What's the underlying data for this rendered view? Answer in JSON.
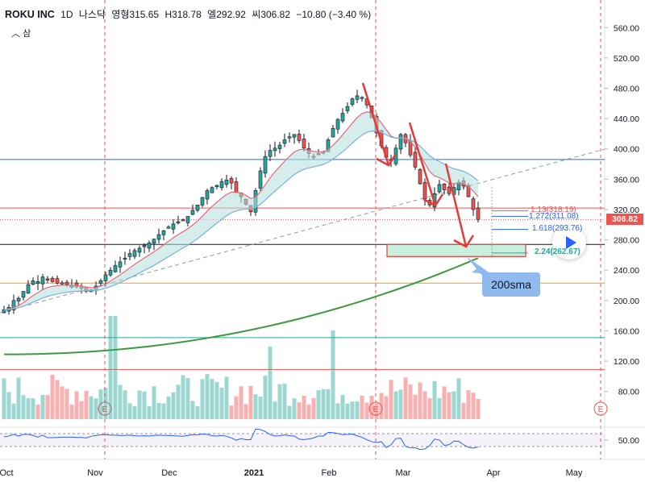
{
  "header": {
    "symbol": "ROKU INC",
    "interval": "1D",
    "exchange": "나스닥",
    "open_label": "영형",
    "open": "315.65",
    "high_label": "H",
    "high": "318.78",
    "low_label": "엘",
    "low": "292.92",
    "close_label": "씨",
    "close": "306.82",
    "change": "−10.80 (−3.40 %)",
    "collapse_label": "삼"
  },
  "last_price_tag": "306.82",
  "note_label": "200sma",
  "fib_labels": [
    "1.13(318.19)",
    "1.272(311.08)",
    "1.618(293.76)",
    "2.24(262.67)"
  ],
  "colors": {
    "up": "#26a69a",
    "down": "#ef5350",
    "ema_fast": "#e06a7c",
    "ema_slow": "#7ab0e0",
    "cloud": "#b2e0dc",
    "sma200": "#3c9a3c",
    "arrow": "#e53935"
  },
  "chart_data": {
    "type": "candlestick",
    "y_axis": {
      "range": [
        80,
        580
      ],
      "ticks": [
        80,
        120,
        160,
        200,
        240,
        280,
        320,
        360,
        400,
        440,
        480,
        520,
        560
      ]
    },
    "x_axis": {
      "labels": [
        "Oct",
        "Nov",
        "Dec",
        "2021",
        "Feb",
        "Mar",
        "Apr",
        "May"
      ]
    },
    "oscillator": {
      "tick": "50.00"
    },
    "horizontal_levels": [
      {
        "price": 386,
        "color": "#2962ff"
      },
      {
        "price": 322,
        "color": "#ef5350"
      },
      {
        "price": 274,
        "color": "#131722"
      },
      {
        "price": 223,
        "color": "#ff9800"
      },
      {
        "price": 151,
        "color": "#26a69a"
      },
      {
        "price": 109,
        "color": "#ef5350"
      }
    ],
    "last_close": 306.82,
    "close_series": [
      188,
      191,
      200,
      203,
      212,
      221,
      226,
      225,
      231,
      228,
      225,
      223,
      222,
      221,
      220,
      218,
      216,
      212,
      214,
      219,
      226,
      234,
      240,
      246,
      251,
      256,
      262,
      266,
      269,
      273,
      276,
      281,
      287,
      292,
      297,
      301,
      304,
      306,
      311,
      319,
      326,
      336,
      345,
      349,
      352,
      357,
      359,
      355,
      343,
      337,
      327,
      317,
      345,
      371,
      390,
      398,
      401,
      405,
      412,
      416,
      419,
      411,
      401,
      394,
      390,
      393,
      396,
      412,
      427,
      439,
      447,
      456,
      466,
      470,
      468,
      458,
      441,
      421,
      404,
      389,
      384,
      401,
      419,
      408,
      392,
      376,
      354,
      334,
      326,
      341,
      353,
      346,
      341,
      349,
      356,
      351,
      337,
      320,
      307
    ]
  }
}
